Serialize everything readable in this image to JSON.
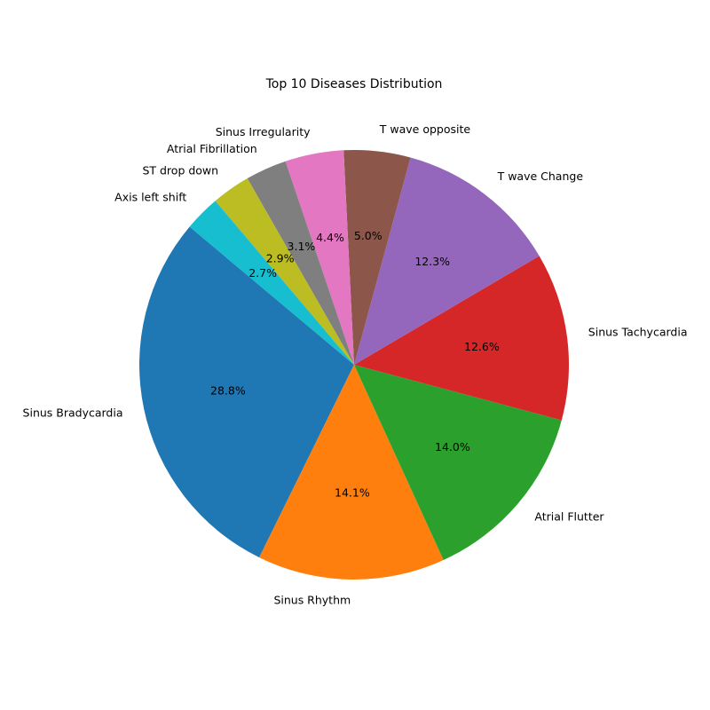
{
  "chart_data": {
    "type": "pie",
    "title": "Top 10 Diseases Distribution",
    "start_angle_deg": 140,
    "direction": "counterclockwise",
    "slices": [
      {
        "label": "Sinus Bradycardia",
        "value": 28.8,
        "pct_label": "28.8%",
        "color": "#1f77b4"
      },
      {
        "label": "Sinus Rhythm",
        "value": 14.1,
        "pct_label": "14.1%",
        "color": "#ff7f0e"
      },
      {
        "label": "Atrial Flutter",
        "value": 14.0,
        "pct_label": "14.0%",
        "color": "#2ca02c"
      },
      {
        "label": "Sinus Tachycardia",
        "value": 12.6,
        "pct_label": "12.6%",
        "color": "#d62728"
      },
      {
        "label": "T wave Change",
        "value": 12.3,
        "pct_label": "12.3%",
        "color": "#9467bd"
      },
      {
        "label": "T wave opposite",
        "value": 5.0,
        "pct_label": "5.0%",
        "color": "#8c564b"
      },
      {
        "label": "Sinus Irregularity",
        "value": 4.4,
        "pct_label": "4.4%",
        "color": "#e377c2"
      },
      {
        "label": "Atrial Fibrillation",
        "value": 3.1,
        "pct_label": "3.1%",
        "color": "#7f7f7f"
      },
      {
        "label": "ST drop down",
        "value": 2.9,
        "pct_label": "2.9%",
        "color": "#bcbd22"
      },
      {
        "label": "Axis left shift",
        "value": 2.7,
        "pct_label": "2.7%",
        "color": "#17becf"
      }
    ]
  }
}
